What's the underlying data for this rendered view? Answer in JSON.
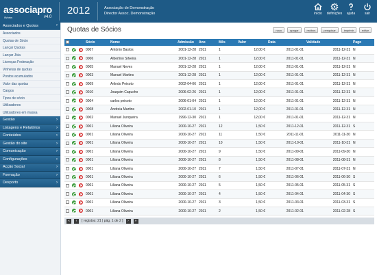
{
  "header": {
    "brand": "associapro",
    "brand_sub": "iWorks",
    "version": "v4.0",
    "year": "2012",
    "association": "Associação de Demonstração",
    "director": "Director Assoc. Demonstração",
    "nav": [
      {
        "label": "início",
        "icon": "home-icon"
      },
      {
        "label": "definições",
        "icon": "gear-icon"
      },
      {
        "label": "ajuda",
        "icon": "help-icon"
      },
      {
        "label": "sair",
        "icon": "power-icon"
      }
    ]
  },
  "sidebar": {
    "active_section": "Associados e Quotas",
    "sub_items": [
      "Associados",
      "Quotas de Sócio",
      "Lançar Quotas",
      "Lançar Jóia",
      "Licenças Federação",
      "Vinhetas de quotas",
      "Pontos acumulados",
      "Valor das quotas",
      "Cargos",
      "Tipos de sócio",
      "Utilizadores",
      "Utilizadores em massa"
    ],
    "groups": [
      "Gestão",
      "Listagens e Relatórios",
      "Conteúdos",
      "Gestão do site",
      "Comunicação",
      "Configurações",
      "Acção Social",
      "Formação",
      "Desporto"
    ]
  },
  "main": {
    "title": "Quotas de Sócios",
    "actions": [
      "novo",
      "apagar",
      "recibos",
      "pesquisar",
      "imprimir",
      "editar"
    ],
    "columns": [
      "Sócio",
      "Nome",
      "Admissão",
      "Ano",
      "Mês",
      "Valor",
      "Data",
      "Validade",
      "Pago"
    ],
    "rows": [
      [
        "0007",
        "António Bastos",
        "2001-12-28",
        "2011",
        "1",
        "12,00 €",
        "2011-01-01",
        "2011-12-31",
        "N"
      ],
      [
        "0006",
        "Albertino Silveira",
        "2001-12-28",
        "2011",
        "1",
        "12,00 €",
        "2011-01-01",
        "2011-12-31",
        "N"
      ],
      [
        "0005",
        "Manuel Neves",
        "2001-12-28",
        "2011",
        "1",
        "12,00 €",
        "2011-01-01",
        "2011-12-31",
        "N"
      ],
      [
        "0003",
        "Manuel Martins",
        "2001-12-28",
        "2011",
        "1",
        "12,00 €",
        "2011-01-01",
        "2011-12-31",
        "N"
      ],
      [
        "0009",
        "Arlindo Peixoto",
        "2002-04-06",
        "2011",
        "1",
        "12,00 €",
        "2011-01-01",
        "2011-12-31",
        "N"
      ],
      [
        "0010",
        "Joaquim Capucho",
        "2006-02-26",
        "2011",
        "1",
        "12,00 €",
        "2011-01-01",
        "2011-12-31",
        "N"
      ],
      [
        "0004",
        "carlos peixoto",
        "2006-01-04",
        "2011",
        "1",
        "12,00 €",
        "2011-01-01",
        "2011-12-31",
        "N"
      ],
      [
        "0008",
        "Andreia Martins",
        "2002-01-10",
        "2011",
        "1",
        "12,00 €",
        "2011-01-01",
        "2011-12-31",
        "N"
      ],
      [
        "0002",
        "Manuel Junqueira",
        "1990-12-30",
        "2011",
        "1",
        "12,00 €",
        "2011-01-01",
        "2011-12-31",
        "N"
      ],
      [
        "0001",
        "Liliana Oliveira",
        "2000-10-27",
        "2011",
        "12",
        "1,50 €",
        "2011-12-01",
        "2011-12-31",
        "S"
      ],
      [
        "0001",
        "Liliana Oliveira",
        "2000-10-27",
        "2011",
        "11",
        "1,50 €",
        "2011-11-01",
        "2011-11-30",
        "N"
      ],
      [
        "0001",
        "Liliana Oliveira",
        "2000-10-27",
        "2011",
        "10",
        "1,50 €",
        "2011-10-01",
        "2011-10-31",
        "N"
      ],
      [
        "0001",
        "Liliana Oliveira",
        "2000-10-27",
        "2011",
        "9",
        "1,50 €",
        "2011-09-01",
        "2011-09-30",
        "N"
      ],
      [
        "0001",
        "Liliana Oliveira",
        "2000-10-27",
        "2011",
        "8",
        "1,50 €",
        "2011-08-01",
        "2011-08-31",
        "N"
      ],
      [
        "0001",
        "Liliana Oliveira",
        "2000-10-27",
        "2011",
        "7",
        "1,50 €",
        "2011-07-01",
        "2011-07-31",
        "N"
      ],
      [
        "0001",
        "Liliana Oliveira",
        "2000-10-27",
        "2011",
        "6",
        "1,50 €",
        "2011-06-01",
        "2011-06-30",
        "S"
      ],
      [
        "0001",
        "Liliana Oliveira",
        "2000-10-27",
        "2011",
        "5",
        "1,50 €",
        "2011-05-01",
        "2011-05-31",
        "S"
      ],
      [
        "0001",
        "Liliana Oliveira",
        "2000-10-27",
        "2011",
        "4",
        "1,50 €",
        "2011-04-01",
        "2011-04-30",
        "S"
      ],
      [
        "0001",
        "Liliana Oliveira",
        "2000-10-27",
        "2011",
        "3",
        "1,50 €",
        "2011-03-01",
        "2011-03-31",
        "S"
      ],
      [
        "0001",
        "Liliana Oliveira",
        "2000-10-27",
        "2011",
        "2",
        "1,50 €",
        "2011-02-01",
        "2011-02-28",
        "S"
      ]
    ],
    "pager_text": "[ registos: 21 | pág. 1 de 2 ]"
  },
  "colors": {
    "header_bg": "#1e5a86",
    "table_header_bg": "#2a79b4",
    "edit_icon": "#3c9c3c",
    "delete_icon": "#d62a2a"
  }
}
